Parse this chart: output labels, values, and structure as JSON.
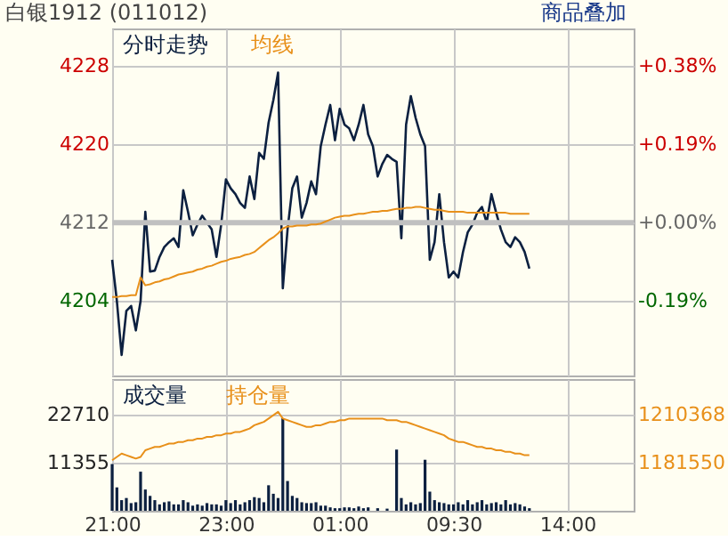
{
  "chart_data": [
    {
      "type": "line",
      "title": "白银1912 (011012)",
      "annotations": [
        "商品叠加"
      ],
      "categories": [
        null,
        null,
        null,
        null,
        null,
        null,
        null,
        null,
        null,
        null,
        null,
        null,
        null,
        null,
        null,
        null,
        null,
        null,
        null,
        null,
        null,
        null,
        null,
        null,
        null,
        null,
        null,
        null,
        null,
        null,
        null,
        null,
        null,
        null,
        null,
        null,
        null,
        null,
        null,
        null,
        null,
        null,
        null,
        null,
        null,
        null,
        null,
        null,
        null,
        null,
        null,
        null,
        null,
        null,
        null,
        null,
        null,
        null,
        null,
        null,
        null,
        null,
        null,
        null,
        null,
        null,
        null,
        null,
        null,
        null,
        null,
        null,
        null,
        null,
        null,
        null,
        null,
        null,
        null,
        null,
        null,
        null,
        null,
        null,
        null,
        null,
        null,
        null,
        null,
        null,
        null,
        null,
        null,
        null,
        null,
        null,
        null,
        null,
        null,
        null,
        null,
        null,
        null,
        null,
        null,
        null,
        null,
        null,
        null,
        null,
        null
      ],
      "ylim": [
        4196.4,
        4231.8
      ],
      "yticks": [
        4204,
        4212,
        4220,
        4228
      ],
      "y2lim": [
        -0.37,
        0.47
      ],
      "y2ticks": [
        {
          "value": -0.19,
          "label": "-0.19%"
        },
        {
          "value": 0,
          "label": "+0.00%"
        },
        {
          "value": 0.19,
          "label": "+0.19%"
        },
        {
          "value": 0.38,
          "label": "+0.38%"
        }
      ],
      "ref_lines": [
        {
          "axis": "y",
          "value": 4212,
          "color": "#c0c0c0"
        }
      ],
      "grid": true,
      "legend": "top left",
      "tick_labels": "y",
      "series": [
        {
          "name": "分时走势",
          "color": "#0c2040",
          "values": [
            4208.2,
            4204,
            4198.5,
            4203,
            4203.5,
            4201,
            4204,
            4213.1,
            4207,
            4207.1,
            4208.5,
            4209.5,
            4210,
            4210.4,
            4209.5,
            4215.3,
            4213.1,
            4210.7,
            4211.8,
            4212.7,
            4212,
            4211.3,
            4208.5,
            4211.8,
            4216.4,
            4215.5,
            4214.9,
            4214,
            4213.5,
            4216.7,
            4214.4,
            4219.1,
            4218.5,
            4222.2,
            4224.5,
            4227.3,
            4205.3,
            4211.3,
            4215.5,
            4216.7,
            4212.5,
            4214,
            4216.2,
            4214.9,
            4219.8,
            4222,
            4224,
            4220.4,
            4223.6,
            4222,
            4221.6,
            4220.4,
            4222,
            4224,
            4221,
            4219.8,
            4216.7,
            4218,
            4218.9,
            4218.5,
            4218.2,
            4210.4,
            4222,
            4224.9,
            4222.7,
            4221,
            4219.8,
            4208.2,
            4210,
            4214.9,
            4210,
            4206.4,
            4207,
            4206.4,
            4209,
            4211,
            4211.8,
            4213,
            4213.6,
            4212,
            4214.9,
            4213,
            4211.3,
            4210,
            4209.5,
            4210.5,
            4210,
            4209,
            4207.3,
            null,
            null,
            null,
            null,
            null,
            null,
            null,
            null,
            null,
            null,
            null,
            null,
            null,
            null,
            null,
            null,
            null,
            null,
            null,
            null,
            null,
            null
          ]
        },
        {
          "name": "均线",
          "color": "#e8901a",
          "values": [
            4204.4,
            4204.4,
            4204.5,
            4204.5,
            4204.6,
            4204.6,
            4206.4,
            4205.6,
            4205.7,
            4205.9,
            4206,
            4206.2,
            4206.3,
            4206.5,
            4206.7,
            4206.8,
            4206.9,
            4207,
            4207.2,
            4207.3,
            4207.5,
            4207.6,
            4207.8,
            4208,
            4208.1,
            4208.3,
            4208.4,
            4208.5,
            4208.7,
            4208.8,
            4209,
            4209.4,
            4209.8,
            4210.2,
            4210.5,
            4210.9,
            4211.4,
            4211.6,
            4211.6,
            4211.7,
            4211.7,
            4211.7,
            4211.8,
            4211.8,
            4211.9,
            4212.1,
            4212.3,
            4212.5,
            4212.6,
            4212.7,
            4212.7,
            4212.8,
            4212.9,
            4212.9,
            4213,
            4213.1,
            4213.1,
            4213.2,
            4213.2,
            4213.3,
            4213.4,
            4213.4,
            4213.5,
            4213.5,
            4213.6,
            4213.6,
            4213.5,
            4213.4,
            4213.3,
            4213.3,
            4213.2,
            4213.1,
            4213.1,
            4213.1,
            4213.1,
            4213,
            4213,
            4213,
            4213,
            4213,
            4213,
            4213,
            4213,
            4213,
            4212.9,
            4212.9,
            4212.9,
            4212.9,
            4212.9,
            null,
            null,
            null,
            null,
            null,
            null,
            null,
            null,
            null,
            null,
            null,
            null,
            null,
            null,
            null,
            null,
            null,
            null,
            null,
            null,
            null,
            null
          ]
        }
      ]
    },
    {
      "type": "bar",
      "categories": [
        "21:00",
        null,
        null,
        null,
        null,
        null,
        null,
        null,
        null,
        null,
        null,
        null,
        null,
        null,
        null,
        null,
        null,
        null,
        null,
        null,
        null,
        null,
        null,
        null,
        "23:00",
        null,
        null,
        null,
        null,
        null,
        null,
        null,
        null,
        null,
        null,
        null,
        null,
        null,
        null,
        null,
        null,
        null,
        null,
        null,
        null,
        null,
        null,
        null,
        "01:00",
        null,
        null,
        null,
        null,
        null,
        null,
        null,
        null,
        null,
        null,
        null,
        null,
        null,
        null,
        null,
        null,
        null,
        null,
        null,
        null,
        null,
        null,
        null,
        "09:30",
        null,
        null,
        null,
        null,
        null,
        null,
        null,
        null,
        null,
        null,
        null,
        null,
        null,
        null,
        null,
        null,
        null,
        null,
        null,
        null,
        null,
        null,
        null,
        "14:00",
        null,
        null,
        null,
        null,
        null,
        null,
        null,
        null,
        null,
        null,
        null,
        null,
        null,
        null
      ],
      "ylim": [
        0,
        31000
      ],
      "yticks": [
        11355,
        22710
      ],
      "y2lim": [
        1152700,
        1231700
      ],
      "y2ticks": [
        1181550,
        1210368
      ],
      "grid": true,
      "legend": "top left",
      "series": [
        {
          "name": "成交量",
          "type": "bar",
          "color": "#0c2040",
          "values": [
            11000,
            5500,
            2500,
            3000,
            1800,
            2000,
            9200,
            5000,
            3500,
            2500,
            1500,
            2000,
            2200,
            1500,
            1500,
            2500,
            2000,
            1200,
            1500,
            1200,
            1800,
            1500,
            1500,
            1200,
            2500,
            1800,
            2500,
            1500,
            2000,
            2500,
            3200,
            3000,
            2000,
            6000,
            4000,
            3000,
            21800,
            7000,
            3500,
            3000,
            2000,
            1800,
            1800,
            2000,
            1200,
            1200,
            800,
            600,
            600,
            800,
            800,
            600,
            1000,
            600,
            800,
            null,
            600,
            null,
            500,
            null,
            14400,
            3000,
            1500,
            2000,
            1500,
            1800,
            12000,
            4500,
            2500,
            2000,
            1800,
            1500,
            1500,
            2000,
            1500,
            2500,
            1500,
            2000,
            2500,
            1500,
            1800,
            2000,
            1500,
            2500,
            1500,
            1800,
            1500,
            1000,
            600,
            null,
            null,
            null,
            null,
            null,
            null,
            null,
            null,
            null,
            null,
            null,
            null,
            null,
            null,
            null,
            null,
            null,
            null,
            null,
            null,
            null,
            null
          ]
        },
        {
          "name": "持仓量",
          "type": "line",
          "axis": "y2",
          "color": "#e8901a",
          "values": [
            1183000,
            1185000,
            1187000,
            1186000,
            1185000,
            1184000,
            1185000,
            1189000,
            1190000,
            1191000,
            1191000,
            1192000,
            1193000,
            1193000,
            1194000,
            1194000,
            1195000,
            1195000,
            1196000,
            1196000,
            1197000,
            1197000,
            1198000,
            1198000,
            1199000,
            1199000,
            1200000,
            1200000,
            1201000,
            1202000,
            1204000,
            1205000,
            1206000,
            1208000,
            1210000,
            1212000,
            1208000,
            1207000,
            1206000,
            1205000,
            1204000,
            1203000,
            1203000,
            1204000,
            1204000,
            1205000,
            1206000,
            1206000,
            1207000,
            1207000,
            1208000,
            1208000,
            1208000,
            1208000,
            1208000,
            1208000,
            1208000,
            1208000,
            1207000,
            1207000,
            1207000,
            1206000,
            1206000,
            1205000,
            1204000,
            1203000,
            1202000,
            1201000,
            1200000,
            1199000,
            1198000,
            1196000,
            1195000,
            1194000,
            1194000,
            1193000,
            1192000,
            1191000,
            1191000,
            1190000,
            1190000,
            1189000,
            1189000,
            1188000,
            1188000,
            1187000,
            1187000,
            1186000,
            1186000,
            null,
            null,
            null,
            null,
            null,
            null,
            null,
            null,
            null,
            null,
            null,
            null,
            null,
            null,
            null,
            null,
            null,
            null,
            null,
            null,
            null,
            null
          ]
        }
      ]
    }
  ]
}
